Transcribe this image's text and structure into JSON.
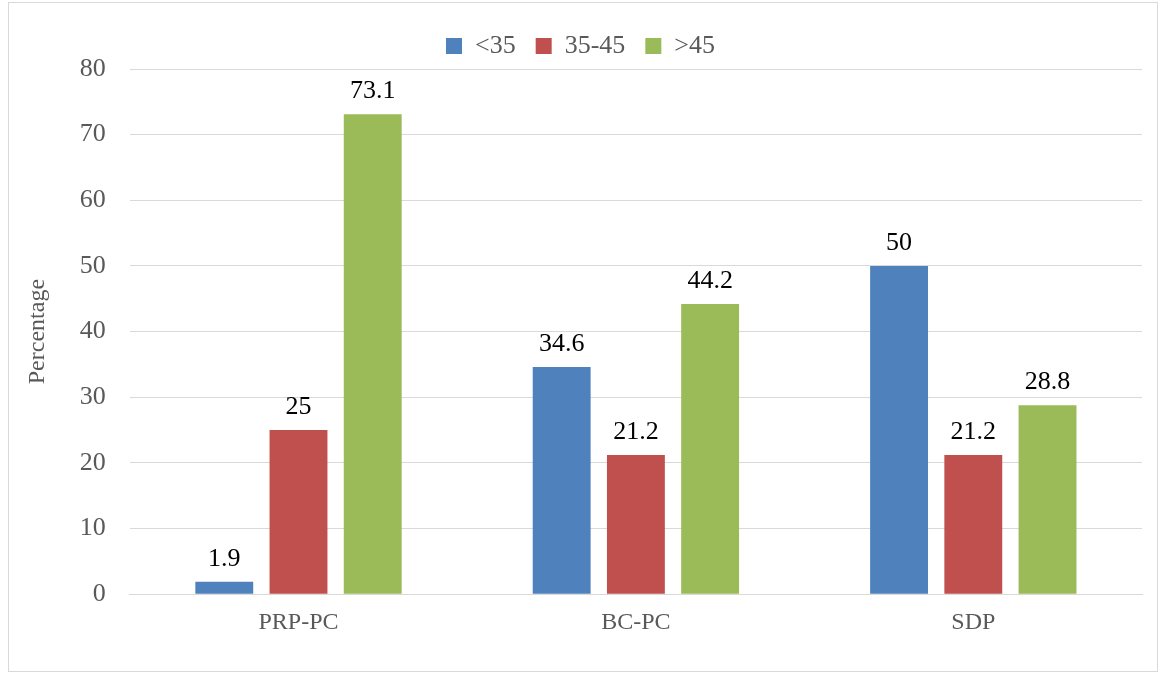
{
  "chart_data": {
    "type": "bar",
    "ylabel": "Percentage",
    "categories": [
      "PRP-PC",
      "BC-PC",
      "SDP"
    ],
    "series": [
      {
        "name": "<35",
        "color": "#4f81bd",
        "values": [
          1.9,
          34.6,
          50
        ]
      },
      {
        "name": "35-45",
        "color": "#c0504d",
        "values": [
          25,
          21.2,
          21.2
        ]
      },
      {
        "name": ">45",
        "color": "#9bbb59",
        "values": [
          73.1,
          44.2,
          28.8
        ]
      }
    ],
    "ylim": [
      0,
      80
    ],
    "yticks": [
      0,
      10,
      20,
      30,
      40,
      50,
      60,
      70,
      80
    ],
    "grid": "y",
    "legend": "top",
    "data_labels": true
  }
}
